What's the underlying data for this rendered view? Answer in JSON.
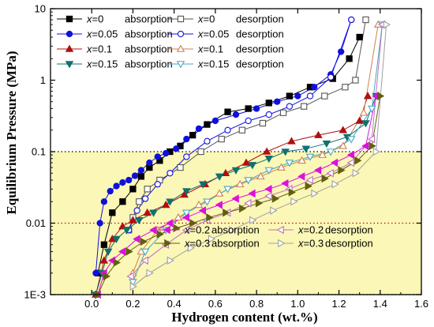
{
  "chart_data": {
    "type": "line",
    "title": "",
    "xlabel": "Hydrogen content (wt.%)",
    "ylabel": "Equilibrium Pressure (MPa)",
    "xlim": [
      -0.2,
      1.6
    ],
    "ylim": [
      0.001,
      10
    ],
    "yscale": "log",
    "x_ticks": [
      0.0,
      0.2,
      0.4,
      0.6,
      0.8,
      1.0,
      1.2,
      1.4,
      1.6
    ],
    "x_tick_labels": [
      "0.0",
      "0.2",
      "0.4",
      "0.6",
      "0.8",
      "1.0",
      "1.2",
      "1.4",
      "1.6"
    ],
    "y_ticks": [
      0.001,
      0.01,
      0.1,
      1,
      10
    ],
    "y_tick_labels": [
      "1E-3",
      "0.01",
      "0.1",
      "1",
      "10"
    ],
    "highlight_band": {
      "y_from": 0.001,
      "y_to": 0.1,
      "color": "#fbf7b6"
    },
    "reference_lines": [
      {
        "y": 0.1,
        "color": "#000000",
        "style": "dotted"
      },
      {
        "y": 0.01,
        "color": "#b01010",
        "style": "dotted"
      },
      {
        "y": 0.001,
        "color": "#000000",
        "style": "dotted"
      }
    ],
    "grid": false,
    "legend_position_top": "top-left",
    "legend_position_bottom": "bottom-right",
    "series": [
      {
        "name": "x=0 absorption",
        "x_label": "x",
        "rest_label": "=0",
        "kind": "absorption",
        "color": "#000000",
        "marker": "square",
        "filled": true,
        "legend_group": "top",
        "legend_col": 0,
        "legend_row": 0,
        "x": [
          0.03,
          0.06,
          0.1,
          0.15,
          0.2,
          0.24,
          0.28,
          0.33,
          0.38,
          0.43,
          0.49,
          0.56,
          0.66,
          0.76,
          0.86,
          0.96,
          1.06,
          1.17,
          1.25,
          1.3
        ],
        "y": [
          0.002,
          0.005,
          0.014,
          0.02,
          0.03,
          0.045,
          0.06,
          0.075,
          0.1,
          0.12,
          0.17,
          0.24,
          0.36,
          0.4,
          0.48,
          0.6,
          0.8,
          1.05,
          2.0,
          4.0
        ]
      },
      {
        "name": "x=0 desorption",
        "x_label": "x",
        "rest_label": "=0",
        "kind": "desorption",
        "color": "#555555",
        "marker": "square",
        "filled": false,
        "legend_group": "top",
        "legend_col": 1,
        "legend_row": 0,
        "x": [
          1.33,
          1.28,
          1.23,
          1.13,
          1.03,
          0.93,
          0.83,
          0.73,
          0.63,
          0.53,
          0.43,
          0.33,
          0.27,
          0.23,
          0.2,
          0.18
        ],
        "y": [
          7.0,
          1.0,
          0.8,
          0.6,
          0.43,
          0.35,
          0.25,
          0.2,
          0.15,
          0.1,
          0.06,
          0.04,
          0.03,
          0.02,
          0.012,
          0.008
        ]
      },
      {
        "name": "x=0.05 absorption",
        "x_label": "x",
        "rest_label": "=0.05",
        "kind": "absorption",
        "color": "#1010dd",
        "marker": "circle",
        "filled": true,
        "legend_group": "top",
        "legend_col": 0,
        "legend_row": 1,
        "x": [
          0.02,
          0.04,
          0.06,
          0.09,
          0.12,
          0.15,
          0.18,
          0.21,
          0.24,
          0.28,
          0.32,
          0.36,
          0.41,
          0.46,
          0.52,
          0.6,
          0.7,
          0.8,
          0.9,
          1.0,
          1.08,
          1.16,
          1.21,
          1.26
        ],
        "y": [
          0.002,
          0.01,
          0.02,
          0.028,
          0.033,
          0.037,
          0.04,
          0.046,
          0.055,
          0.07,
          0.085,
          0.095,
          0.11,
          0.15,
          0.21,
          0.27,
          0.33,
          0.4,
          0.5,
          0.6,
          0.8,
          1.2,
          2.5,
          7.0
        ]
      },
      {
        "name": "x=0.05 desorption",
        "x_label": "x",
        "rest_label": "=0.05",
        "kind": "desorption",
        "color": "#1010dd",
        "marker": "circle",
        "filled": false,
        "legend_group": "top",
        "legend_col": 1,
        "legend_row": 1,
        "x": [
          1.26,
          1.16,
          1.06,
          0.96,
          0.86,
          0.76,
          0.66,
          0.56,
          0.46,
          0.38,
          0.32,
          0.26,
          0.22,
          0.18
        ],
        "y": [
          7.0,
          1.1,
          0.6,
          0.43,
          0.33,
          0.27,
          0.2,
          0.14,
          0.085,
          0.05,
          0.035,
          0.022,
          0.015,
          0.008
        ]
      },
      {
        "name": "x=0.1 absorption",
        "x_label": "x",
        "rest_label": "=0.1",
        "kind": "absorption",
        "color": "#b01010",
        "marker": "triangle-up",
        "filled": true,
        "legend_group": "top",
        "legend_col": 0,
        "legend_row": 2,
        "x": [
          0.02,
          0.06,
          0.1,
          0.15,
          0.2,
          0.27,
          0.36,
          0.45,
          0.55,
          0.65,
          0.75,
          0.85,
          0.97,
          1.1,
          1.22,
          1.3,
          1.34
        ],
        "y": [
          0.001,
          0.003,
          0.006,
          0.009,
          0.011,
          0.014,
          0.018,
          0.025,
          0.035,
          0.05,
          0.07,
          0.1,
          0.14,
          0.17,
          0.2,
          0.27,
          0.6
        ]
      },
      {
        "name": "x=0.1 desorption",
        "x_label": "x",
        "rest_label": "=0.1",
        "kind": "desorption",
        "color": "#d08050",
        "marker": "triangle-up",
        "filled": false,
        "legend_group": "top",
        "legend_col": 1,
        "legend_row": 2,
        "x": [
          1.39,
          1.32,
          1.22,
          1.12,
          1.02,
          0.92,
          0.82,
          0.72,
          0.62,
          0.52,
          0.42,
          0.32,
          0.24,
          0.2
        ],
        "y": [
          6.0,
          0.35,
          0.12,
          0.09,
          0.075,
          0.06,
          0.045,
          0.035,
          0.026,
          0.018,
          0.012,
          0.008,
          0.004,
          0.002
        ]
      },
      {
        "name": "x=0.15 absorption",
        "x_label": "x",
        "rest_label": "=0.15",
        "kind": "absorption",
        "color": "#107070",
        "marker": "triangle-down",
        "filled": true,
        "legend_group": "top",
        "legend_col": 0,
        "legend_row": 3,
        "x": [
          0.02,
          0.05,
          0.08,
          0.12,
          0.17,
          0.23,
          0.3,
          0.38,
          0.46,
          0.54,
          0.62,
          0.7,
          0.78,
          0.86,
          0.94,
          1.04,
          1.14,
          1.24,
          1.33,
          1.38
        ],
        "y": [
          0.001,
          0.002,
          0.004,
          0.006,
          0.008,
          0.011,
          0.014,
          0.02,
          0.028,
          0.035,
          0.045,
          0.055,
          0.065,
          0.08,
          0.1,
          0.11,
          0.13,
          0.16,
          0.25,
          0.6
        ]
      },
      {
        "name": "x=0.15 desorption",
        "x_label": "x",
        "rest_label": "=0.15",
        "kind": "desorption",
        "color": "#4aa8c0",
        "marker": "triangle-down",
        "filled": false,
        "legend_group": "top",
        "legend_col": 1,
        "legend_row": 3,
        "x": [
          1.41,
          1.36,
          1.26,
          1.16,
          1.06,
          0.96,
          0.86,
          0.76,
          0.66,
          0.56,
          0.46,
          0.36,
          0.26,
          0.2
        ],
        "y": [
          6.0,
          0.4,
          0.15,
          0.1,
          0.085,
          0.07,
          0.055,
          0.04,
          0.03,
          0.02,
          0.014,
          0.008,
          0.004,
          0.0015
        ]
      },
      {
        "name": "x=0.2 absorption",
        "x_label": "x",
        "rest_label": "=0.2",
        "kind": "absorption",
        "color": "#dd10dd",
        "marker": "triangle-left",
        "filled": true,
        "legend_group": "bottom",
        "legend_col": 0,
        "legend_row": 0,
        "x": [
          0.03,
          0.06,
          0.1,
          0.15,
          0.22,
          0.3,
          0.38,
          0.46,
          0.54,
          0.62,
          0.7,
          0.78,
          0.86,
          0.94,
          1.02,
          1.1,
          1.18,
          1.26,
          1.33,
          1.38
        ],
        "y": [
          0.001,
          0.002,
          0.003,
          0.004,
          0.006,
          0.008,
          0.01,
          0.012,
          0.015,
          0.018,
          0.022,
          0.026,
          0.03,
          0.036,
          0.045,
          0.055,
          0.07,
          0.09,
          0.12,
          0.6
        ]
      },
      {
        "name": "x=0.2 desorption",
        "x_label": "x",
        "rest_label": "=0.2",
        "kind": "desorption",
        "color": "#c070c0",
        "marker": "triangle-left",
        "filled": false,
        "legend_group": "bottom",
        "legend_col": 1,
        "legend_row": 0,
        "x": [
          1.41,
          1.36,
          1.26,
          1.16,
          1.06,
          0.96,
          0.86,
          0.76,
          0.66,
          0.56,
          0.46,
          0.36,
          0.26,
          0.19
        ],
        "y": [
          6.0,
          0.15,
          0.07,
          0.05,
          0.04,
          0.03,
          0.024,
          0.019,
          0.014,
          0.011,
          0.008,
          0.005,
          0.003,
          0.0018
        ]
      },
      {
        "name": "x=0.3 absorption",
        "x_label": "x",
        "rest_label": "=0.3",
        "kind": "absorption",
        "color": "#606010",
        "marker": "triangle-right",
        "filled": true,
        "legend_group": "bottom",
        "legend_col": 0,
        "legend_row": 1,
        "x": [
          0.03,
          0.07,
          0.12,
          0.18,
          0.25,
          0.33,
          0.41,
          0.49,
          0.57,
          0.65,
          0.73,
          0.81,
          0.89,
          0.97,
          1.05,
          1.13,
          1.21,
          1.29,
          1.36,
          1.4
        ],
        "y": [
          0.001,
          0.0018,
          0.0028,
          0.004,
          0.0055,
          0.007,
          0.0085,
          0.01,
          0.012,
          0.014,
          0.016,
          0.019,
          0.022,
          0.027,
          0.033,
          0.042,
          0.055,
          0.075,
          0.12,
          0.6
        ]
      },
      {
        "name": "x=0.3 desorption",
        "x_label": "x",
        "rest_label": "=0.3",
        "kind": "desorption",
        "color": "#a0a0a0",
        "marker": "triangle-right",
        "filled": false,
        "legend_group": "bottom",
        "legend_col": 1,
        "legend_row": 1,
        "x": [
          1.43,
          1.38,
          1.28,
          1.18,
          1.08,
          0.98,
          0.88,
          0.78,
          0.68,
          0.58,
          0.48,
          0.38,
          0.28,
          0.2
        ],
        "y": [
          6.0,
          0.1,
          0.05,
          0.035,
          0.026,
          0.02,
          0.015,
          0.011,
          0.008,
          0.006,
          0.0045,
          0.003,
          0.002,
          0.0013
        ]
      }
    ]
  }
}
